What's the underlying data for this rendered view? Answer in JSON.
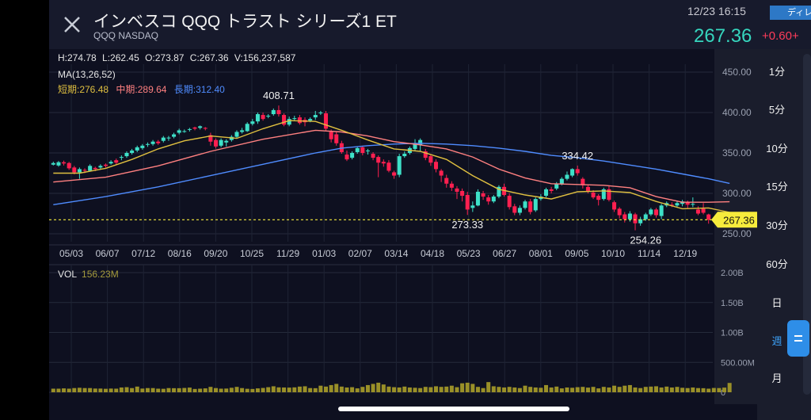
{
  "header": {
    "title": "インベスコ QQQ トラスト シリーズ1 ET",
    "subtitle": "QQQ NASDAQ",
    "datetime": "12/23 16:15",
    "tag": "ディレ",
    "price": "267.36",
    "change": "+0.60",
    "change_extra": "+"
  },
  "ohlc": "H:274.78  L:262.45  O:273.87  C:267.36  V:156,237,587",
  "ma": {
    "label": "MA(13,26,52)",
    "short": "短期:276.48",
    "mid": "中期:289.64",
    "long": "長期:312.40"
  },
  "volume": {
    "label": "VOL",
    "value": "156.23M"
  },
  "intervals": [
    "1分",
    "5分",
    "10分",
    "15分",
    "30分",
    "60分",
    "日",
    "週",
    "月"
  ],
  "active_interval": "週",
  "colors": {
    "up": "#3ee0c8",
    "down": "#ff2050",
    "ma_short": "#e0c040",
    "ma_mid": "#ff8080",
    "ma_long": "#4f8cff",
    "volume": "#9a9028",
    "current_price": "#f6ec3c"
  },
  "chart_data": {
    "type": "candlestick",
    "price_axis": {
      "min": 250,
      "max": 450,
      "ticks": [
        "450.00",
        "400.00",
        "350.00",
        "300.00",
        "250.00"
      ]
    },
    "volume_axis": {
      "min": 0,
      "max": 2000000000,
      "ticks": [
        "2.00B",
        "1.50B",
        "1.00B",
        "500.00M",
        "0"
      ]
    },
    "x_labels": [
      "05/03",
      "06/07",
      "07/12",
      "08/16",
      "09/20",
      "10/25",
      "11/29",
      "01/03",
      "02/07",
      "03/14",
      "04/18",
      "05/23",
      "06/27",
      "08/01",
      "09/05",
      "10/10",
      "11/14",
      "12/19"
    ],
    "annotations": [
      "408.71",
      "273.33",
      "334.42",
      "254.26"
    ],
    "current_price_label": "267.36",
    "candles": [
      {
        "o": 335.5,
        "c": 337.5,
        "h": 339.2,
        "l": 334.5
      },
      {
        "o": 334.5,
        "c": 338.5,
        "h": 340.0,
        "l": 333.0
      },
      {
        "o": 338.5,
        "c": 337.0,
        "h": 340.5,
        "l": 334.5
      },
      {
        "o": 337.5,
        "c": 331.0,
        "h": 339.0,
        "l": 329.0
      },
      {
        "o": 332.0,
        "c": 326.0,
        "h": 334.0,
        "l": 323.5
      },
      {
        "o": 326.0,
        "c": 330.0,
        "h": 332.0,
        "l": 318.0
      },
      {
        "o": 329.0,
        "c": 328.0,
        "h": 331.0,
        "l": 325.0
      },
      {
        "o": 328.0,
        "c": 334.0,
        "h": 336.0,
        "l": 327.0
      },
      {
        "o": 331.5,
        "c": 330.0,
        "h": 333.0,
        "l": 327.5
      },
      {
        "o": 332.0,
        "c": 334.0,
        "h": 336.0,
        "l": 330.0
      },
      {
        "o": 335.5,
        "c": 334.0,
        "h": 337.0,
        "l": 332.0
      },
      {
        "o": 337.0,
        "c": 339.0,
        "h": 341.0,
        "l": 335.5
      },
      {
        "o": 341.0,
        "c": 338.0,
        "h": 343.0,
        "l": 336.0
      },
      {
        "o": 344.0,
        "c": 345.0,
        "h": 347.0,
        "l": 341.0
      },
      {
        "o": 346.0,
        "c": 350.0,
        "h": 352.0,
        "l": 344.0
      },
      {
        "o": 350.0,
        "c": 353.0,
        "h": 355.0,
        "l": 348.0
      },
      {
        "o": 353.0,
        "c": 357.0,
        "h": 359.0,
        "l": 351.0
      },
      {
        "o": 356.0,
        "c": 359.0,
        "h": 361.0,
        "l": 354.0
      },
      {
        "o": 360.0,
        "c": 361.0,
        "h": 363.0,
        "l": 357.5
      },
      {
        "o": 361.0,
        "c": 364.0,
        "h": 366.0,
        "l": 359.0
      },
      {
        "o": 364.0,
        "c": 362.0,
        "h": 366.0,
        "l": 360.0
      },
      {
        "o": 365.0,
        "c": 369.0,
        "h": 371.0,
        "l": 363.0
      },
      {
        "o": 368.0,
        "c": 369.0,
        "h": 371.0,
        "l": 365.0
      },
      {
        "o": 370.0,
        "c": 373.0,
        "h": 375.0,
        "l": 368.0
      },
      {
        "o": 375.0,
        "c": 378.0,
        "h": 380.0,
        "l": 373.0
      },
      {
        "o": 377.0,
        "c": 377.0,
        "h": 379.0,
        "l": 375.0
      },
      {
        "o": 379.0,
        "c": 379.5,
        "h": 381.0,
        "l": 376.5
      },
      {
        "o": 381.5,
        "c": 380.0,
        "h": 382.5,
        "l": 378.0
      },
      {
        "o": 381.0,
        "c": 383.0,
        "h": 384.0,
        "l": 379.0
      },
      {
        "o": 381.0,
        "c": 380.0,
        "h": 382.0,
        "l": 378.0
      },
      {
        "o": 372.0,
        "c": 364.0,
        "h": 375.0,
        "l": 359.0
      },
      {
        "o": 366.0,
        "c": 358.0,
        "h": 368.0,
        "l": 355.5
      },
      {
        "o": 359.0,
        "c": 366.0,
        "h": 368.0,
        "l": 357.0
      },
      {
        "o": 363.0,
        "c": 365.0,
        "h": 367.0,
        "l": 358.0
      },
      {
        "o": 366.0,
        "c": 370.0,
        "h": 372.0,
        "l": 364.0
      },
      {
        "o": 370.0,
        "c": 376.0,
        "h": 378.0,
        "l": 368.0
      },
      {
        "o": 376.0,
        "c": 378.0,
        "h": 381.0,
        "l": 374.0
      },
      {
        "o": 377.0,
        "c": 386.0,
        "h": 388.0,
        "l": 376.0
      },
      {
        "o": 386.0,
        "c": 389.0,
        "h": 392.0,
        "l": 384.0
      },
      {
        "o": 389.0,
        "c": 398.0,
        "h": 400.0,
        "l": 386.0
      },
      {
        "o": 397.0,
        "c": 392.0,
        "h": 400.0,
        "l": 390.0
      },
      {
        "o": 395.0,
        "c": 396.0,
        "h": 398.0,
        "l": 393.0
      },
      {
        "o": 398.0,
        "c": 403.0,
        "h": 405.0,
        "l": 396.0
      },
      {
        "o": 403.0,
        "c": 398.0,
        "h": 408.7,
        "l": 395.0
      },
      {
        "o": 397.0,
        "c": 385.0,
        "h": 399.0,
        "l": 383.0
      },
      {
        "o": 385.0,
        "c": 392.0,
        "h": 395.0,
        "l": 383.0
      },
      {
        "o": 393.0,
        "c": 393.0,
        "h": 396.0,
        "l": 390.0
      },
      {
        "o": 394.0,
        "c": 387.0,
        "h": 397.0,
        "l": 385.0
      },
      {
        "o": 391.0,
        "c": 388.0,
        "h": 394.0,
        "l": 383.0
      },
      {
        "o": 390.0,
        "c": 392.0,
        "h": 394.0,
        "l": 388.0
      },
      {
        "o": 394.0,
        "c": 397.0,
        "h": 402.0,
        "l": 391.0
      },
      {
        "o": 399.0,
        "c": 400.0,
        "h": 402.0,
        "l": 397.0
      },
      {
        "o": 399.0,
        "c": 380.0,
        "h": 402.0,
        "l": 377.0
      },
      {
        "o": 376.0,
        "c": 367.0,
        "h": 379.0,
        "l": 363.0
      },
      {
        "o": 373.0,
        "c": 362.0,
        "h": 376.0,
        "l": 359.0
      },
      {
        "o": 362.0,
        "c": 351.0,
        "h": 365.0,
        "l": 349.0
      },
      {
        "o": 348.0,
        "c": 342.0,
        "h": 353.0,
        "l": 340.0
      },
      {
        "o": 344.0,
        "c": 350.0,
        "h": 352.0,
        "l": 342.0
      },
      {
        "o": 351.0,
        "c": 356.0,
        "h": 358.0,
        "l": 349.0
      },
      {
        "o": 357.0,
        "c": 350.0,
        "h": 359.0,
        "l": 347.0
      },
      {
        "o": 352.0,
        "c": 353.0,
        "h": 355.0,
        "l": 348.0
      },
      {
        "o": 349.0,
        "c": 344.0,
        "h": 351.0,
        "l": 341.0
      },
      {
        "o": 345.0,
        "c": 338.0,
        "h": 347.0,
        "l": 320.0
      },
      {
        "o": 339.0,
        "c": 337.0,
        "h": 342.0,
        "l": 333.0
      },
      {
        "o": 338.0,
        "c": 328.0,
        "h": 341.0,
        "l": 326.0
      },
      {
        "o": 326.0,
        "c": 322.0,
        "h": 328.0,
        "l": 318.0
      },
      {
        "o": 323.0,
        "c": 346.0,
        "h": 349.0,
        "l": 320.0
      },
      {
        "o": 346.0,
        "c": 349.0,
        "h": 352.0,
        "l": 344.0
      },
      {
        "o": 350.0,
        "c": 356.0,
        "h": 358.0,
        "l": 348.0
      },
      {
        "o": 355.0,
        "c": 362.0,
        "h": 367.0,
        "l": 353.0
      },
      {
        "o": 360.0,
        "c": 366.0,
        "h": 368.0,
        "l": 352.0
      },
      {
        "o": 352.0,
        "c": 344.0,
        "h": 355.0,
        "l": 341.0
      },
      {
        "o": 346.0,
        "c": 338.0,
        "h": 348.0,
        "l": 334.0
      },
      {
        "o": 339.0,
        "c": 330.0,
        "h": 342.0,
        "l": 326.0
      },
      {
        "o": 328.0,
        "c": 322.0,
        "h": 330.0,
        "l": 314.0
      },
      {
        "o": 319.0,
        "c": 312.0,
        "h": 323.0,
        "l": 307.0
      },
      {
        "o": 312.0,
        "c": 307.0,
        "h": 315.0,
        "l": 303.0
      },
      {
        "o": 306.0,
        "c": 302.0,
        "h": 309.0,
        "l": 293.0
      },
      {
        "o": 303.0,
        "c": 297.0,
        "h": 306.0,
        "l": 290.0
      },
      {
        "o": 298.0,
        "c": 280.0,
        "h": 302.0,
        "l": 273.3
      },
      {
        "o": 282.0,
        "c": 285.0,
        "h": 290.0,
        "l": 277.0
      },
      {
        "o": 285.0,
        "c": 302.0,
        "h": 305.0,
        "l": 284.0
      },
      {
        "o": 300.0,
        "c": 296.0,
        "h": 303.0,
        "l": 292.0
      },
      {
        "o": 295.0,
        "c": 290.0,
        "h": 298.0,
        "l": 286.0
      },
      {
        "o": 290.0,
        "c": 296.0,
        "h": 298.0,
        "l": 288.0
      },
      {
        "o": 296.0,
        "c": 308.0,
        "h": 310.0,
        "l": 294.0
      },
      {
        "o": 308.0,
        "c": 298.0,
        "h": 312.0,
        "l": 296.0
      },
      {
        "o": 297.0,
        "c": 283.0,
        "h": 300.0,
        "l": 280.0
      },
      {
        "o": 284.0,
        "c": 276.0,
        "h": 287.0,
        "l": 273.0
      },
      {
        "o": 276.0,
        "c": 282.0,
        "h": 285.0,
        "l": 273.0
      },
      {
        "o": 282.0,
        "c": 290.0,
        "h": 292.0,
        "l": 280.0
      },
      {
        "o": 290.0,
        "c": 277.0,
        "h": 293.0,
        "l": 274.0
      },
      {
        "o": 279.0,
        "c": 293.0,
        "h": 295.0,
        "l": 277.0
      },
      {
        "o": 293.0,
        "c": 296.0,
        "h": 299.0,
        "l": 291.0
      },
      {
        "o": 297.0,
        "c": 305.0,
        "h": 307.0,
        "l": 295.0
      },
      {
        "o": 305.0,
        "c": 303.0,
        "h": 308.0,
        "l": 300.0
      },
      {
        "o": 306.0,
        "c": 312.0,
        "h": 314.0,
        "l": 304.0
      },
      {
        "o": 312.0,
        "c": 318.0,
        "h": 320.0,
        "l": 310.0
      },
      {
        "o": 318.0,
        "c": 323.0,
        "h": 327.0,
        "l": 316.0
      },
      {
        "o": 322.0,
        "c": 330.0,
        "h": 331.0,
        "l": 320.0
      },
      {
        "o": 330.0,
        "c": 325.0,
        "h": 334.4,
        "l": 322.0
      },
      {
        "o": 318.0,
        "c": 310.0,
        "h": 320.0,
        "l": 306.0
      },
      {
        "o": 308.0,
        "c": 303.0,
        "h": 310.0,
        "l": 300.0
      },
      {
        "o": 301.0,
        "c": 295.0,
        "h": 304.0,
        "l": 293.0
      },
      {
        "o": 297.0,
        "c": 292.0,
        "h": 299.0,
        "l": 285.0
      },
      {
        "o": 293.0,
        "c": 305.0,
        "h": 307.0,
        "l": 291.0
      },
      {
        "o": 305.0,
        "c": 292.0,
        "h": 309.0,
        "l": 290.0
      },
      {
        "o": 289.0,
        "c": 280.0,
        "h": 291.0,
        "l": 277.0
      },
      {
        "o": 281.0,
        "c": 273.0,
        "h": 283.0,
        "l": 269.0
      },
      {
        "o": 274.0,
        "c": 268.0,
        "h": 277.0,
        "l": 264.0
      },
      {
        "o": 268.0,
        "c": 275.0,
        "h": 278.0,
        "l": 265.0
      },
      {
        "o": 274.0,
        "c": 263.0,
        "h": 276.0,
        "l": 254.3
      },
      {
        "o": 263.0,
        "c": 268.0,
        "h": 271.0,
        "l": 260.0
      },
      {
        "o": 268.0,
        "c": 274.0,
        "h": 276.0,
        "l": 266.0
      },
      {
        "o": 274.0,
        "c": 280.0,
        "h": 282.0,
        "l": 272.0
      },
      {
        "o": 280.0,
        "c": 273.0,
        "h": 282.0,
        "l": 270.0
      },
      {
        "o": 272.0,
        "c": 285.0,
        "h": 287.0,
        "l": 268.0
      },
      {
        "o": 285.0,
        "c": 288.0,
        "h": 290.0,
        "l": 283.0
      },
      {
        "o": 286.0,
        "c": 285.0,
        "h": 289.0,
        "l": 283.0
      },
      {
        "o": 285.0,
        "c": 288.0,
        "h": 291.0,
        "l": 283.0
      },
      {
        "o": 287.0,
        "c": 290.0,
        "h": 292.0,
        "l": 284.0
      },
      {
        "o": 289.0,
        "c": 286.0,
        "h": 291.0,
        "l": 281.0
      },
      {
        "o": 286.0,
        "c": 287.0,
        "h": 295.0,
        "l": 283.0
      },
      {
        "o": 280.0,
        "c": 275.0,
        "h": 284.0,
        "l": 273.0
      },
      {
        "o": 281.0,
        "c": 276.0,
        "h": 288.0,
        "l": 274.0
      },
      {
        "o": 273.9,
        "c": 267.4,
        "h": 274.8,
        "l": 262.5
      }
    ],
    "ma_short": [
      [
        0,
        325
      ],
      [
        5,
        325
      ],
      [
        10,
        331
      ],
      [
        15,
        342
      ],
      [
        20,
        355
      ],
      [
        25,
        365
      ],
      [
        30,
        371
      ],
      [
        35,
        368
      ],
      [
        40,
        380
      ],
      [
        45,
        390
      ],
      [
        50,
        389
      ],
      [
        55,
        378
      ],
      [
        60,
        366
      ],
      [
        65,
        355
      ],
      [
        70,
        352
      ],
      [
        75,
        342
      ],
      [
        80,
        322
      ],
      [
        85,
        305
      ],
      [
        90,
        298
      ],
      [
        95,
        293
      ],
      [
        100,
        302
      ],
      [
        105,
        303
      ],
      [
        110,
        301
      ],
      [
        115,
        290
      ],
      [
        120,
        281
      ],
      [
        125,
        282
      ],
      [
        129,
        276.5
      ]
    ],
    "ma_mid": [
      [
        0,
        314
      ],
      [
        10,
        320
      ],
      [
        20,
        334
      ],
      [
        30,
        352
      ],
      [
        40,
        367
      ],
      [
        50,
        378
      ],
      [
        55,
        376
      ],
      [
        60,
        371
      ],
      [
        65,
        364
      ],
      [
        70,
        360
      ],
      [
        75,
        355
      ],
      [
        80,
        345
      ],
      [
        85,
        330
      ],
      [
        90,
        319
      ],
      [
        95,
        312
      ],
      [
        100,
        311
      ],
      [
        105,
        310
      ],
      [
        110,
        307
      ],
      [
        115,
        296
      ],
      [
        120,
        289
      ],
      [
        125,
        289
      ],
      [
        129,
        289.6
      ]
    ],
    "ma_long": [
      [
        0,
        286
      ],
      [
        10,
        296
      ],
      [
        20,
        308
      ],
      [
        30,
        322
      ],
      [
        40,
        336
      ],
      [
        50,
        350
      ],
      [
        55,
        356
      ],
      [
        60,
        359
      ],
      [
        65,
        361
      ],
      [
        70,
        362
      ],
      [
        75,
        361
      ],
      [
        80,
        359
      ],
      [
        85,
        356
      ],
      [
        90,
        352
      ],
      [
        95,
        347
      ],
      [
        100,
        344
      ],
      [
        105,
        340
      ],
      [
        110,
        335
      ],
      [
        115,
        330
      ],
      [
        120,
        324
      ],
      [
        125,
        318
      ],
      [
        129,
        312.4
      ]
    ],
    "volumes_m": [
      60,
      60,
      65,
      60,
      70,
      75,
      70,
      70,
      62,
      62,
      58,
      62,
      60,
      80,
      85,
      70,
      95,
      62,
      70,
      70,
      60,
      58,
      70,
      68,
      68,
      72,
      78,
      55,
      60,
      65,
      90,
      70,
      60,
      62,
      75,
      90,
      70,
      58,
      55,
      65,
      72,
      85,
      100,
      82,
      80,
      78,
      82,
      95,
      100,
      70,
      68,
      110,
      95,
      120,
      140,
      95,
      80,
      85,
      65,
      90,
      120,
      140,
      160,
      130,
      95,
      85,
      80,
      95,
      80,
      75,
      70,
      90,
      85,
      100,
      90,
      95,
      110,
      85,
      150,
      160,
      140,
      90,
      70,
      170,
      100,
      90,
      80,
      90,
      80,
      70,
      110,
      90,
      80,
      75,
      120,
      80,
      95,
      65,
      80,
      75,
      85,
      90,
      78,
      90,
      65,
      90,
      80,
      110,
      90,
      110,
      120,
      80,
      70,
      90,
      95,
      100,
      80,
      95,
      80,
      90,
      75,
      70,
      80,
      70,
      68,
      60,
      72,
      70,
      78,
      156
    ]
  }
}
